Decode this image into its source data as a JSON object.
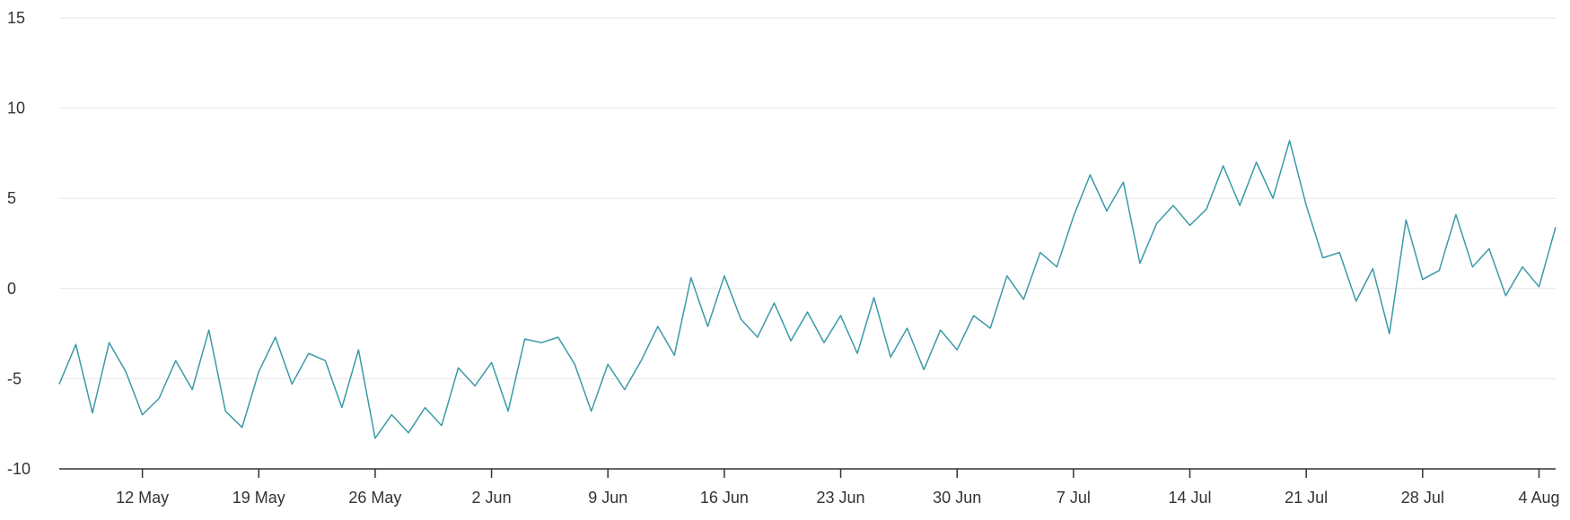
{
  "chart_data": {
    "type": "line",
    "title": "",
    "xlabel": "",
    "ylabel": "",
    "x_start": "2024-05-07",
    "x_end": "2024-08-05",
    "xlim": [
      "2024-05-07",
      "2024-08-05"
    ],
    "ylim": [
      -10,
      15
    ],
    "grid": true,
    "legend": "none",
    "line_color": "#3a9aa8",
    "y_ticks": [
      {
        "value": -10,
        "label": "-10"
      },
      {
        "value": -5,
        "label": "-5"
      },
      {
        "value": 0,
        "label": "0"
      },
      {
        "value": 5,
        "label": "5"
      },
      {
        "value": 10,
        "label": "10"
      },
      {
        "value": 15,
        "label": "15"
      }
    ],
    "x_ticks": [
      {
        "date": "2024-05-12",
        "label": "12 May"
      },
      {
        "date": "2024-05-19",
        "label": "19 May"
      },
      {
        "date": "2024-05-26",
        "label": "26 May"
      },
      {
        "date": "2024-06-02",
        "label": "2 Jun"
      },
      {
        "date": "2024-06-09",
        "label": "9 Jun"
      },
      {
        "date": "2024-06-16",
        "label": "16 Jun"
      },
      {
        "date": "2024-06-23",
        "label": "23 Jun"
      },
      {
        "date": "2024-06-30",
        "label": "30 Jun"
      },
      {
        "date": "2024-07-07",
        "label": "7 Jul"
      },
      {
        "date": "2024-07-14",
        "label": "14 Jul"
      },
      {
        "date": "2024-07-21",
        "label": "21 Jul"
      },
      {
        "date": "2024-07-28",
        "label": "28 Jul"
      },
      {
        "date": "2024-08-04",
        "label": "4 Aug"
      }
    ],
    "series": [
      {
        "points": [
          [
            "2024-05-07",
            -5.3
          ],
          [
            "2024-05-08",
            -3.1
          ],
          [
            "2024-05-09",
            -6.9
          ],
          [
            "2024-05-10",
            -3.0
          ],
          [
            "2024-05-11",
            -4.6
          ],
          [
            "2024-05-12",
            -7.0
          ],
          [
            "2024-05-13",
            -6.1
          ],
          [
            "2024-05-14",
            -4.0
          ],
          [
            "2024-05-15",
            -5.6
          ],
          [
            "2024-05-16",
            -2.3
          ],
          [
            "2024-05-17",
            -6.8
          ],
          [
            "2024-05-18",
            -7.7
          ],
          [
            "2024-05-19",
            -4.6
          ],
          [
            "2024-05-20",
            -2.7
          ],
          [
            "2024-05-21",
            -5.3
          ],
          [
            "2024-05-22",
            -3.6
          ],
          [
            "2024-05-23",
            -4.0
          ],
          [
            "2024-05-24",
            -6.6
          ],
          [
            "2024-05-25",
            -3.4
          ],
          [
            "2024-05-26",
            -8.3
          ],
          [
            "2024-05-27",
            -7.0
          ],
          [
            "2024-05-28",
            -8.0
          ],
          [
            "2024-05-29",
            -6.6
          ],
          [
            "2024-05-30",
            -7.6
          ],
          [
            "2024-05-31",
            -4.4
          ],
          [
            "2024-06-01",
            -5.4
          ],
          [
            "2024-06-02",
            -4.1
          ],
          [
            "2024-06-03",
            -6.8
          ],
          [
            "2024-06-04",
            -2.8
          ],
          [
            "2024-06-05",
            -3.0
          ],
          [
            "2024-06-06",
            -2.7
          ],
          [
            "2024-06-07",
            -4.2
          ],
          [
            "2024-06-08",
            -6.8
          ],
          [
            "2024-06-09",
            -4.2
          ],
          [
            "2024-06-10",
            -5.6
          ],
          [
            "2024-06-11",
            -4.0
          ],
          [
            "2024-06-12",
            -2.1
          ],
          [
            "2024-06-13",
            -3.7
          ],
          [
            "2024-06-14",
            0.6
          ],
          [
            "2024-06-15",
            -2.1
          ],
          [
            "2024-06-16",
            0.7
          ],
          [
            "2024-06-17",
            -1.7
          ],
          [
            "2024-06-18",
            -2.7
          ],
          [
            "2024-06-19",
            -0.8
          ],
          [
            "2024-06-20",
            -2.9
          ],
          [
            "2024-06-21",
            -1.3
          ],
          [
            "2024-06-22",
            -3.0
          ],
          [
            "2024-06-23",
            -1.5
          ],
          [
            "2024-06-24",
            -3.6
          ],
          [
            "2024-06-25",
            -0.5
          ],
          [
            "2024-06-26",
            -3.8
          ],
          [
            "2024-06-27",
            -2.2
          ],
          [
            "2024-06-28",
            -4.5
          ],
          [
            "2024-06-29",
            -2.3
          ],
          [
            "2024-06-30",
            -3.4
          ],
          [
            "2024-07-01",
            -1.5
          ],
          [
            "2024-07-02",
            -2.2
          ],
          [
            "2024-07-03",
            0.7
          ],
          [
            "2024-07-04",
            -0.6
          ],
          [
            "2024-07-05",
            2.0
          ],
          [
            "2024-07-06",
            1.2
          ],
          [
            "2024-07-07",
            4.0
          ],
          [
            "2024-07-08",
            6.3
          ],
          [
            "2024-07-09",
            4.3
          ],
          [
            "2024-07-10",
            5.9
          ],
          [
            "2024-07-11",
            1.4
          ],
          [
            "2024-07-12",
            3.6
          ],
          [
            "2024-07-13",
            4.6
          ],
          [
            "2024-07-14",
            3.5
          ],
          [
            "2024-07-15",
            4.4
          ],
          [
            "2024-07-16",
            6.8
          ],
          [
            "2024-07-17",
            4.6
          ],
          [
            "2024-07-18",
            7.0
          ],
          [
            "2024-07-19",
            5.0
          ],
          [
            "2024-07-20",
            8.2
          ],
          [
            "2024-07-21",
            4.6
          ],
          [
            "2024-07-22",
            1.7
          ],
          [
            "2024-07-23",
            2.0
          ],
          [
            "2024-07-24",
            -0.7
          ],
          [
            "2024-07-25",
            1.1
          ],
          [
            "2024-07-26",
            -2.5
          ],
          [
            "2024-07-27",
            3.8
          ],
          [
            "2024-07-28",
            0.5
          ],
          [
            "2024-07-29",
            1.0
          ],
          [
            "2024-07-30",
            4.1
          ],
          [
            "2024-07-31",
            1.2
          ],
          [
            "2024-08-01",
            2.2
          ],
          [
            "2024-08-02",
            -0.4
          ],
          [
            "2024-08-03",
            1.2
          ],
          [
            "2024-08-04",
            0.1
          ],
          [
            "2024-08-05",
            3.4
          ]
        ]
      }
    ]
  }
}
